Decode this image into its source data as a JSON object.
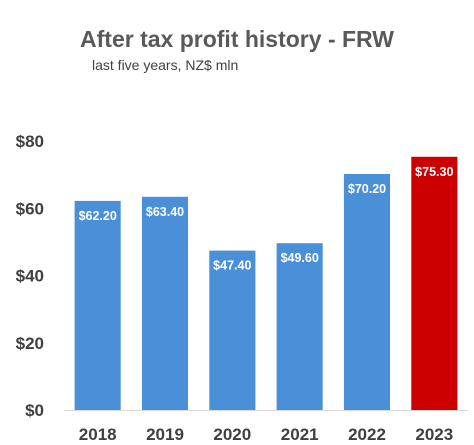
{
  "chart_data": {
    "type": "bar",
    "title": "After tax profit history - FRW",
    "subtitle": "last five years, NZ$ mln",
    "categories": [
      "2018",
      "2019",
      "2020",
      "2021",
      "2022",
      "2023"
    ],
    "values": [
      62.2,
      63.4,
      47.4,
      49.6,
      70.2,
      75.3
    ],
    "data_labels": [
      "$62.20",
      "$63.40",
      "$47.40",
      "$49.60",
      "$70.20",
      "$75.30"
    ],
    "y_ticks": [
      0,
      20,
      40,
      60,
      80
    ],
    "y_tick_labels": [
      "$0",
      "$20",
      "$40",
      "$60",
      "$80"
    ],
    "ylim": [
      0,
      80
    ],
    "xlabel": "",
    "ylabel": "",
    "grid": false,
    "legend": "none",
    "colors": {
      "bar": "#4a90d9",
      "highlight_bar": "#cc0000",
      "highlight_index": 5,
      "axis": "#d9d9d9",
      "text": "#404040"
    }
  }
}
